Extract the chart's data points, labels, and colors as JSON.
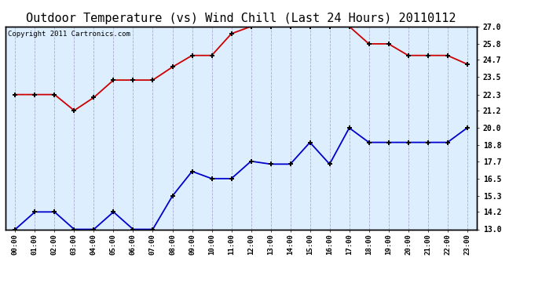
{
  "title": "Outdoor Temperature (vs) Wind Chill (Last 24 Hours) 20110112",
  "copyright": "Copyright 2011 Cartronics.com",
  "hours": [
    "00:00",
    "01:00",
    "02:00",
    "03:00",
    "04:00",
    "05:00",
    "06:00",
    "07:00",
    "08:00",
    "09:00",
    "10:00",
    "11:00",
    "12:00",
    "13:00",
    "14:00",
    "15:00",
    "16:00",
    "17:00",
    "18:00",
    "19:00",
    "20:00",
    "21:00",
    "22:00",
    "23:00"
  ],
  "temp": [
    22.3,
    22.3,
    22.3,
    21.2,
    22.1,
    23.3,
    23.3,
    23.3,
    24.2,
    25.0,
    25.0,
    26.5,
    27.0,
    27.0,
    27.0,
    27.0,
    27.0,
    27.0,
    25.8,
    25.8,
    25.0,
    25.0,
    25.0,
    24.4
  ],
  "wind_chill": [
    13.0,
    14.2,
    14.2,
    13.0,
    13.0,
    14.2,
    13.0,
    13.0,
    15.3,
    17.0,
    16.5,
    16.5,
    17.7,
    17.5,
    17.5,
    19.0,
    17.5,
    20.0,
    19.0,
    19.0,
    19.0,
    19.0,
    19.0,
    20.0
  ],
  "temp_color": "#cc0000",
  "wind_chill_color": "#0000cc",
  "plot_bg_color": "#ddeeff",
  "fig_bg_color": "#ffffff",
  "grid_color": "#aaaacc",
  "ylim": [
    13.0,
    27.0
  ],
  "yticks_right": [
    13.0,
    14.2,
    15.3,
    16.5,
    17.7,
    18.8,
    20.0,
    21.2,
    22.3,
    23.5,
    24.7,
    25.8,
    27.0
  ],
  "title_fontsize": 11,
  "copyright_fontsize": 6.5,
  "tick_fontsize": 7,
  "xtick_fontsize": 6.5
}
